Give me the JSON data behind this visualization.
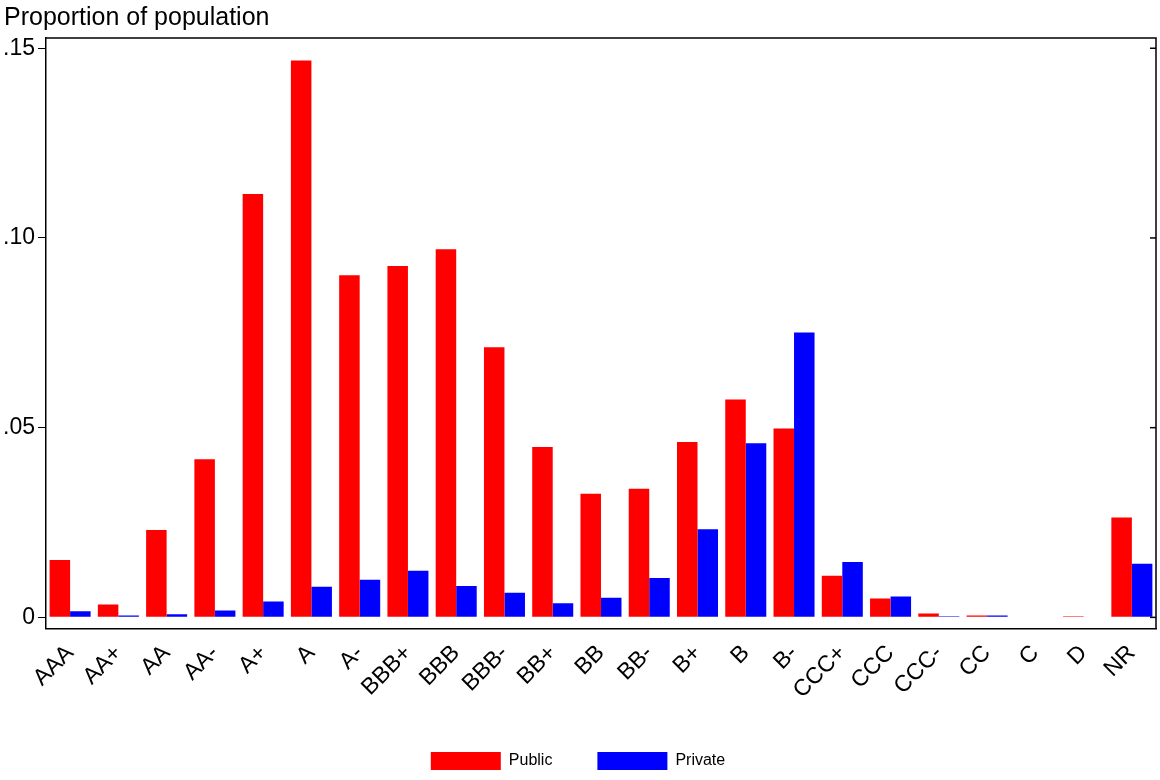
{
  "chart_data": {
    "type": "bar",
    "ylabel": "Proportion of population",
    "categories": [
      "AAA",
      "AA+",
      "AA",
      "AA-",
      "A+",
      "A",
      "A-",
      "BBB+",
      "BBB",
      "BBB-",
      "BB+",
      "BB",
      "BB-",
      "B+",
      "B",
      "B-",
      "CCC+",
      "CCC",
      "CCC-",
      "CC",
      "C",
      "D",
      "NR"
    ],
    "series": [
      {
        "name": "Public",
        "color": "#ff0000",
        "values": [
          0.0151,
          0.0034,
          0.023,
          0.0417,
          0.1116,
          0.1468,
          0.0902,
          0.0926,
          0.097,
          0.0712,
          0.0449,
          0.0326,
          0.0339,
          0.0462,
          0.0574,
          0.0498,
          0.011,
          0.005,
          0.001,
          0.0005,
          0,
          0.0003,
          0.0263
        ]
      },
      {
        "name": "Private",
        "color": "#0000ff",
        "values": [
          0.0016,
          0.0005,
          0.0008,
          0.0018,
          0.0042,
          0.0081,
          0.0099,
          0.0123,
          0.0083,
          0.0065,
          0.0037,
          0.0052,
          0.0104,
          0.0232,
          0.0459,
          0.0751,
          0.0146,
          0.0055,
          0.0003,
          0.0005,
          0,
          0,
          0.0141
        ]
      }
    ],
    "ylim": [
      -0.003,
      0.1527
    ],
    "yticks": [
      {
        "value": 0,
        "label": "0"
      },
      {
        "value": 0.05,
        "label": ".05"
      },
      {
        "value": 0.1,
        "label": ".10"
      },
      {
        "value": 0.15,
        "label": ".15"
      }
    ],
    "grid": false,
    "legend": "bottom"
  }
}
